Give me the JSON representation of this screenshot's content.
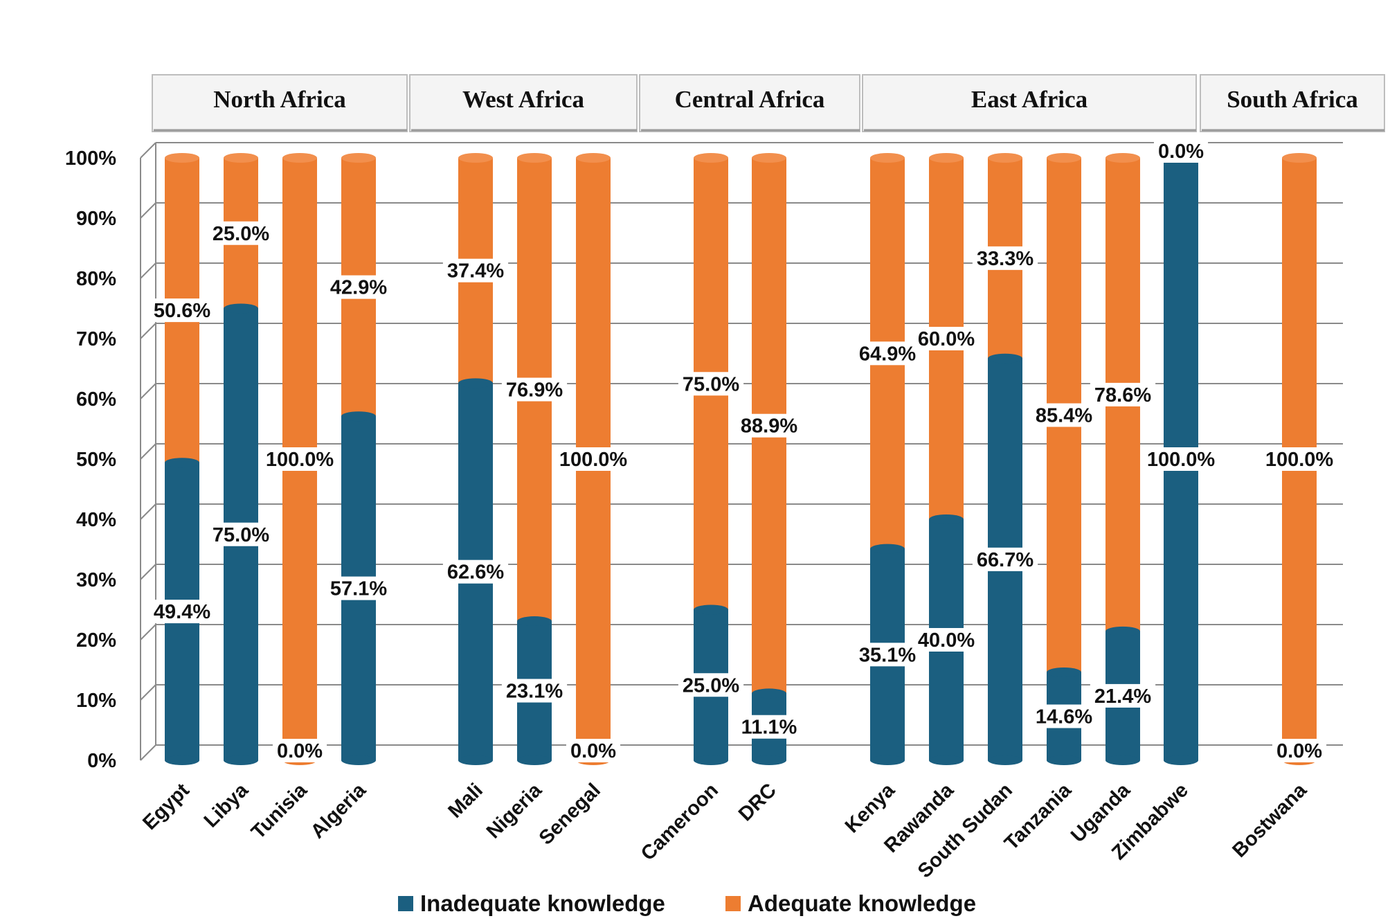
{
  "chart_data": {
    "type": "bar",
    "stacked": true,
    "percent": true,
    "regions": [
      {
        "name": "North Africa",
        "countries": [
          "Egypt",
          "Libya",
          "Tunisia",
          "Algeria"
        ]
      },
      {
        "name": "West Africa",
        "countries": [
          "Mali",
          "Nigeria",
          "Senegal"
        ]
      },
      {
        "name": "Central Africa",
        "countries": [
          "Cameroon",
          "DRC"
        ]
      },
      {
        "name": "East Africa",
        "countries": [
          "Kenya",
          "Rawanda",
          "South Sudan",
          "Tanzania",
          "Uganda",
          "Zimbabwe"
        ]
      },
      {
        "name": "South Africa",
        "countries": [
          "Bostwana"
        ]
      }
    ],
    "categories": [
      "Egypt",
      "Libya",
      "Tunisia",
      "Algeria",
      "Mali",
      "Nigeria",
      "Senegal",
      "Cameroon",
      "DRC",
      "Kenya",
      "Rawanda",
      "South Sudan",
      "Tanzania",
      "Uganda",
      "Zimbabwe",
      "Bostwana"
    ],
    "series": [
      {
        "name": "Inadequate knowledge",
        "color": "#1b5f80",
        "values": [
          49.4,
          75.0,
          0.0,
          57.1,
          62.6,
          23.1,
          0.0,
          25.0,
          11.1,
          35.1,
          40.0,
          66.7,
          14.6,
          21.4,
          100.0,
          0.0
        ],
        "labels": [
          "49.4%",
          "75.0%",
          "0.0%",
          "57.1%",
          "62.6%",
          "23.1%",
          "0.0%",
          "25.0%",
          "11.1%",
          "35.1%",
          "40.0%",
          "66.7%",
          "14.6%",
          "21.4%",
          "100.0%",
          "0.0%"
        ]
      },
      {
        "name": "Adequate knowledge",
        "color": "#ed7d31",
        "values": [
          50.6,
          25.0,
          100.0,
          42.9,
          37.4,
          76.9,
          100.0,
          75.0,
          88.9,
          64.9,
          60.0,
          33.3,
          85.4,
          78.6,
          0.0,
          100.0
        ],
        "labels": [
          "50.6%",
          "25.0%",
          "100.0%",
          "42.9%",
          "37.4%",
          "76.9%",
          "100.0%",
          "75.0%",
          "88.9%",
          "64.9%",
          "60.0%",
          "33.3%",
          "85.4%",
          "78.6%",
          "0.0%",
          "100.0%"
        ]
      }
    ],
    "y_ticks": [
      "0%",
      "10%",
      "20%",
      "30%",
      "40%",
      "50%",
      "60%",
      "70%",
      "80%",
      "90%",
      "100%"
    ],
    "ylim": [
      0,
      100
    ],
    "legend": [
      "Inadequate knowledge",
      "Adequate knowledge"
    ],
    "legend_position": "bottom"
  }
}
